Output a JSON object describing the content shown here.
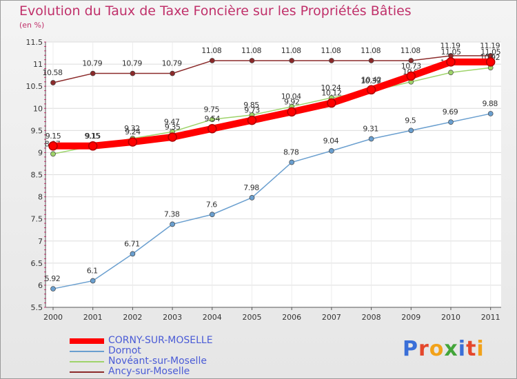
{
  "chart_data": {
    "type": "line",
    "title": "Evolution du Taux de Taxe Foncière sur les Propriétés Bâties",
    "unit_label": "(en %)",
    "xlabel": "",
    "ylabel": "",
    "ylim": [
      5.5,
      11.5
    ],
    "yticks": [
      "5.5",
      "6",
      "6.5",
      "7",
      "7.5",
      "8",
      "8.5",
      "9",
      "9.5",
      "10",
      "10.5",
      "11",
      "11.5"
    ],
    "categories": [
      "2000",
      "2001",
      "2002",
      "2003",
      "2004",
      "2005",
      "2006",
      "2007",
      "2008",
      "2009",
      "2010",
      "2011"
    ],
    "series": [
      {
        "name": "Ancy-sur-Moselle",
        "color": "#8b2a2a",
        "values": [
          10.58,
          10.79,
          10.79,
          10.79,
          11.08,
          11.08,
          11.08,
          11.08,
          11.08,
          11.08,
          11.19,
          11.19
        ],
        "labels": [
          "10.58",
          "10.79",
          "10.79",
          "10.79",
          "11.08",
          "11.08",
          "11.08",
          "11.08",
          "11.08",
          "11.08",
          "11.19",
          "11.19"
        ]
      },
      {
        "name": "Dornot",
        "color": "#6a9fcf",
        "values": [
          5.92,
          6.1,
          6.71,
          7.38,
          7.6,
          7.98,
          8.78,
          9.04,
          9.31,
          9.5,
          9.69,
          9.88
        ],
        "labels": [
          "5.92",
          "6.1",
          "6.71",
          "7.38",
          "7.6",
          "7.98",
          "8.78",
          "9.04",
          "9.31",
          "9.5",
          "9.69",
          "9.88"
        ]
      },
      {
        "name": "Novéant-sur-Moselle",
        "color": "#9ed36a",
        "values": [
          8.97,
          9.15,
          9.32,
          9.47,
          9.75,
          9.85,
          10.04,
          10.24,
          10.39,
          10.6,
          10.81,
          10.92
        ],
        "labels": [
          "8.97",
          "9.15",
          "9.32",
          "9.47",
          "9.75",
          "9.85",
          "10.04",
          "10.24",
          "10.39",
          "10.6",
          "10.81",
          "10.92"
        ]
      },
      {
        "name": "CORNY-SUR-MOSELLE",
        "color": "#ff0000",
        "values": [
          9.15,
          9.15,
          9.24,
          9.35,
          9.54,
          9.73,
          9.92,
          10.12,
          10.42,
          10.73,
          11.05,
          11.05
        ],
        "labels": [
          "9.15",
          "9.15",
          "9.24",
          "9.35",
          "9.54",
          "9.73",
          "9.92",
          "10.12",
          "10.42",
          "10.73",
          "11.05",
          "11.05"
        ]
      }
    ],
    "legend": [
      {
        "name": "CORNY-SUR-MOSELLE",
        "color": "#ff0000"
      },
      {
        "name": "Dornot",
        "color": "#6a9fcf"
      },
      {
        "name": "Novéant-sur-Moselle",
        "color": "#9ed36a"
      },
      {
        "name": "Ancy-sur-Moselle",
        "color": "#8b2a2a"
      }
    ]
  },
  "brand": {
    "logo_text": "Proxiti",
    "letters": [
      "P",
      "r",
      "o",
      "x",
      "i",
      "t",
      "i"
    ],
    "letter_colors": [
      "#3a6fd8",
      "#e4472c",
      "#f2a21a",
      "#43a53a",
      "#3a6fd8",
      "#e4472c",
      "#f2a21a"
    ]
  }
}
